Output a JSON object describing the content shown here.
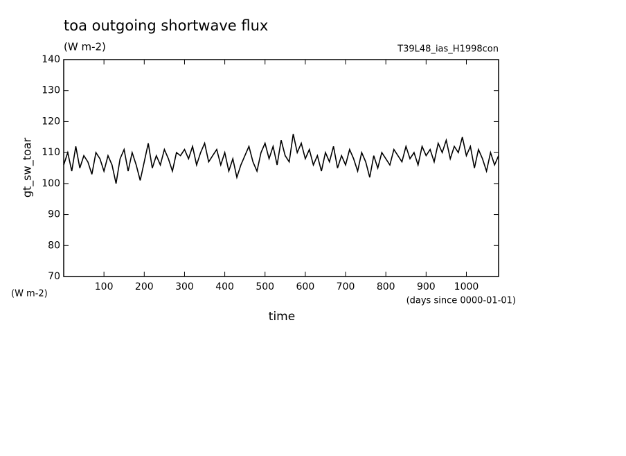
{
  "chart_data": {
    "type": "line",
    "title": "toa outgoing shortwave flux",
    "units": "(W m-2)",
    "run_label": "T39L48_ias_H1998con",
    "y_label": "gt_sw_toar",
    "y_units": "(W m-2)",
    "x_label": "time",
    "x_units": "(days since 0000-01-01)",
    "color": "#000000",
    "x": [
      0,
      10,
      20,
      30,
      40,
      50,
      60,
      70,
      80,
      90,
      100,
      110,
      120,
      130,
      140,
      150,
      160,
      170,
      180,
      190,
      200,
      210,
      220,
      230,
      240,
      250,
      260,
      270,
      280,
      290,
      300,
      310,
      320,
      330,
      340,
      350,
      360,
      370,
      380,
      390,
      400,
      410,
      420,
      430,
      440,
      450,
      460,
      470,
      480,
      490,
      500,
      510,
      520,
      530,
      540,
      550,
      560,
      570,
      580,
      590,
      600,
      610,
      620,
      630,
      640,
      650,
      660,
      670,
      680,
      690,
      700,
      710,
      720,
      730,
      740,
      750,
      760,
      770,
      780,
      790,
      800,
      810,
      820,
      830,
      840,
      850,
      860,
      870,
      880,
      890,
      900,
      910,
      920,
      930,
      940,
      950,
      960,
      970,
      980,
      990,
      1000,
      1010,
      1020,
      1030,
      1040,
      1050,
      1060,
      1070,
      1080
    ],
    "values": [
      106,
      110,
      104,
      112,
      105,
      109,
      107,
      103,
      110,
      108,
      104,
      109,
      106,
      100,
      108,
      111,
      104,
      110,
      106,
      101,
      107,
      113,
      105,
      109,
      106,
      111,
      108,
      104,
      110,
      109,
      111,
      108,
      112,
      106,
      110,
      113,
      107,
      109,
      111,
      106,
      110,
      104,
      108,
      102,
      106,
      109,
      112,
      107,
      104,
      110,
      113,
      108,
      112,
      106,
      114,
      109,
      107,
      116,
      110,
      113,
      108,
      111,
      106,
      109,
      104,
      110,
      107,
      112,
      105,
      109,
      106,
      111,
      108,
      104,
      110,
      107,
      102,
      109,
      105,
      110,
      108,
      106,
      111,
      109,
      107,
      112,
      108,
      110,
      106,
      112,
      109,
      111,
      107,
      113,
      110,
      114,
      108,
      112,
      110,
      115,
      109,
      112,
      105,
      111,
      108,
      104,
      110,
      106,
      109
    ],
    "xlim": [
      0,
      1080
    ],
    "xticks": [
      100,
      200,
      300,
      400,
      500,
      600,
      700,
      800,
      900,
      1000
    ],
    "ylim": [
      70,
      140
    ],
    "yticks": [
      70,
      80,
      90,
      100,
      110,
      120,
      130,
      140
    ]
  }
}
